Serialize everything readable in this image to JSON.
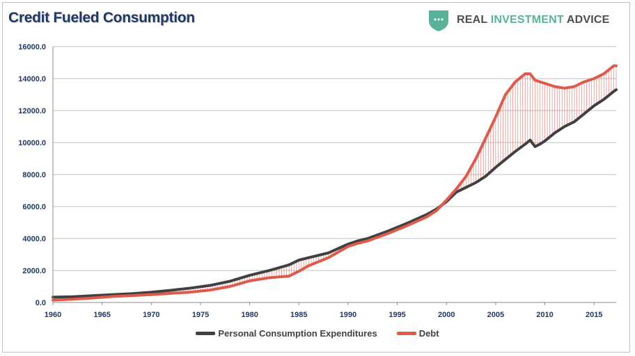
{
  "header": {
    "title": "Credit Fueled Consumption",
    "brand_part1": "REAL ",
    "brand_part2": "INVESTMENT",
    "brand_part3": " ADVICE",
    "brand_icon": "shield-chat-icon",
    "brand_color": "#56b39a"
  },
  "chart_data": {
    "type": "line",
    "title": "Credit Fueled Consumption",
    "xlabel": "",
    "ylabel": "",
    "xlim": [
      1960,
      2017.25
    ],
    "ylim": [
      0,
      16000
    ],
    "grid": true,
    "fill_between": true,
    "x_ticks": [
      1960,
      1965,
      1970,
      1975,
      1980,
      1985,
      1990,
      1995,
      2000,
      2005,
      2010,
      2015
    ],
    "y_ticks": [
      "0.0",
      "2000.0",
      "4000.0",
      "6000.0",
      "8000.0",
      "10000.0",
      "12000.0",
      "14000.0",
      "16000.0"
    ],
    "legend_position": "bottom",
    "x": [
      1960,
      1962,
      1964,
      1966,
      1968,
      1970,
      1972,
      1974,
      1976,
      1978,
      1980,
      1982,
      1984,
      1985,
      1986,
      1988,
      1990,
      1991,
      1992,
      1994,
      1996,
      1998,
      1999,
      2000,
      2001,
      2002,
      2003,
      2004,
      2005,
      2006,
      2007,
      2008,
      2008.5,
      2009,
      2009.5,
      2010,
      2011,
      2012,
      2013,
      2014,
      2015,
      2016,
      2017,
      2017.25
    ],
    "series": [
      {
        "name": "Personal Consumption Expenditures",
        "color": "#404040",
        "values": [
          330,
          360,
          420,
          490,
          550,
          640,
          760,
          900,
          1070,
          1330,
          1700,
          2000,
          2350,
          2650,
          2800,
          3100,
          3650,
          3850,
          4000,
          4450,
          4950,
          5500,
          5850,
          6300,
          6900,
          7200,
          7500,
          7900,
          8450,
          8950,
          9450,
          9900,
          10150,
          9750,
          9900,
          10100,
          10600,
          11000,
          11300,
          11800,
          12300,
          12700,
          13200,
          13300
        ]
      },
      {
        "name": "Debt",
        "color": "#e05a4c",
        "values": [
          150,
          200,
          280,
          370,
          430,
          490,
          570,
          650,
          780,
          1000,
          1350,
          1550,
          1650,
          1950,
          2300,
          2800,
          3500,
          3700,
          3850,
          4300,
          4800,
          5350,
          5750,
          6400,
          7100,
          7900,
          9000,
          10300,
          11600,
          13000,
          13800,
          14300,
          14300,
          13900,
          13800,
          13700,
          13500,
          13400,
          13500,
          13800,
          14000,
          14300,
          14800,
          14800
        ]
      }
    ]
  }
}
